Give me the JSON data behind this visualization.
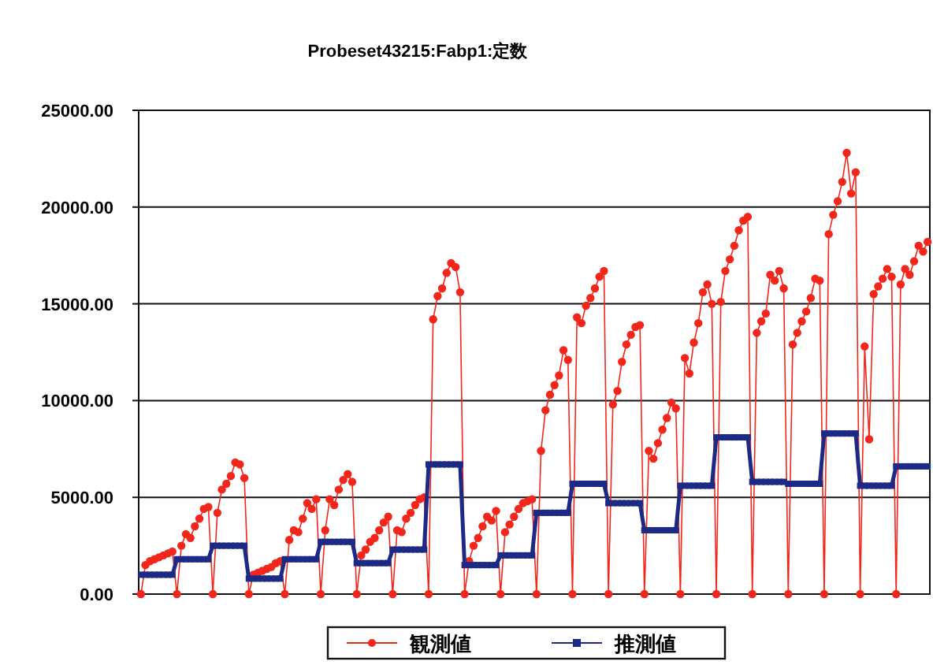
{
  "chart_data": {
    "type": "line",
    "title": "Probeset43215:Fabp1:定数",
    "categories": [
      null,
      null,
      null,
      null,
      null,
      null,
      null,
      null,
      null,
      null,
      null,
      null,
      null,
      null,
      null,
      null,
      null,
      null,
      null,
      null,
      null,
      null,
      null,
      null,
      null,
      null,
      null,
      null,
      null,
      null,
      null,
      null,
      null,
      null,
      null,
      null,
      null,
      null,
      null,
      null,
      null,
      null,
      null,
      null,
      null,
      null,
      null,
      null,
      null,
      null,
      null,
      null,
      null,
      null,
      null,
      null,
      null,
      null,
      null,
      null,
      null,
      null,
      null,
      null,
      null,
      null,
      null,
      null,
      null,
      null,
      null,
      null,
      null,
      null,
      null,
      null,
      null,
      null,
      null,
      null,
      null,
      null,
      null,
      null,
      null,
      null,
      null,
      null,
      null,
      null,
      null,
      null,
      null,
      null,
      null,
      null,
      null,
      null,
      null,
      null,
      null,
      null,
      null,
      null,
      null,
      null,
      null,
      null,
      null,
      null,
      null,
      null,
      null,
      null,
      null,
      null,
      null,
      null,
      null,
      null,
      null,
      null,
      null,
      null,
      null,
      null,
      null,
      null,
      null,
      null,
      null,
      null,
      null,
      null,
      null,
      null,
      null,
      null,
      null,
      null,
      null,
      null,
      null,
      null,
      null,
      null,
      null,
      null,
      null,
      null,
      null,
      null,
      null,
      null,
      null,
      null,
      null,
      null,
      null,
      null,
      null,
      null,
      null,
      null,
      null,
      null,
      null,
      null,
      null,
      null,
      null,
      null,
      null,
      null,
      null,
      null
    ],
    "ylim": [
      0,
      25000
    ],
    "yticks": [
      {
        "value": 0,
        "label": "0.00"
      },
      {
        "value": 5000,
        "label": "5000.00"
      },
      {
        "value": 10000,
        "label": "10000.00"
      },
      {
        "value": 15000,
        "label": "15000.00"
      },
      {
        "value": 20000,
        "label": "20000.00"
      },
      {
        "value": 25000,
        "label": "25000.00"
      }
    ],
    "grid": "y",
    "legend": "bottom",
    "series": [
      {
        "name": "観測値",
        "color": "#f2261a",
        "marker": "circle",
        "values": [
          0,
          1500,
          1700,
          1800,
          1900,
          2000,
          2100,
          2200,
          0,
          2500,
          3100,
          2900,
          3500,
          3900,
          4400,
          4500,
          0,
          4200,
          5400,
          5700,
          6100,
          6800,
          6700,
          6000,
          0,
          1000,
          1100,
          1200,
          1300,
          1400,
          1600,
          1700,
          0,
          2800,
          3300,
          3200,
          3900,
          4700,
          4400,
          4900,
          0,
          3300,
          4900,
          4600,
          5400,
          5900,
          6200,
          5800,
          0,
          2000,
          2300,
          2700,
          2900,
          3300,
          3700,
          4000,
          0,
          3300,
          3200,
          3900,
          4200,
          4600,
          4900,
          5000,
          0,
          14200,
          15400,
          15800,
          16600,
          17100,
          16900,
          15600,
          0,
          1700,
          2500,
          2900,
          3500,
          4000,
          3800,
          4300,
          0,
          3200,
          3600,
          4000,
          4400,
          4700,
          4800,
          4900,
          0,
          7400,
          9500,
          10300,
          10800,
          11300,
          12600,
          12100,
          0,
          14300,
          14000,
          14900,
          15300,
          15800,
          16400,
          16700,
          0,
          9800,
          10500,
          12000,
          12900,
          13400,
          13800,
          13900,
          0,
          7400,
          7000,
          7800,
          8500,
          9100,
          9900,
          9600,
          0,
          12200,
          11400,
          13000,
          14000,
          15600,
          16000,
          15000,
          0,
          15100,
          16700,
          17300,
          18000,
          18800,
          19300,
          19500,
          0,
          13500,
          14100,
          14500,
          16500,
          16200,
          16700,
          15800,
          0,
          12900,
          13500,
          14100,
          14600,
          15300,
          16300,
          16200,
          0,
          18600,
          19600,
          20300,
          21300,
          22800,
          20700,
          21800,
          0,
          12800,
          8000,
          15500,
          15900,
          16300,
          16800,
          16400,
          0,
          16000,
          16800,
          16500,
          17200,
          18000,
          17700,
          18200
        ]
      },
      {
        "name": "推測値",
        "color": "#1c2a85",
        "marker": "square",
        "values": [
          1000,
          1000,
          1000,
          1000,
          1000,
          1000,
          1000,
          1000,
          1800,
          1800,
          1800,
          1800,
          1800,
          1800,
          1800,
          1800,
          2500,
          2500,
          2500,
          2500,
          2500,
          2500,
          2500,
          2500,
          800,
          800,
          800,
          800,
          800,
          800,
          800,
          800,
          1800,
          1800,
          1800,
          1800,
          1800,
          1800,
          1800,
          1800,
          2700,
          2700,
          2700,
          2700,
          2700,
          2700,
          2700,
          2700,
          1600,
          1600,
          1600,
          1600,
          1600,
          1600,
          1600,
          1600,
          2300,
          2300,
          2300,
          2300,
          2300,
          2300,
          2300,
          2300,
          6700,
          6700,
          6700,
          6700,
          6700,
          6700,
          6700,
          6700,
          1500,
          1500,
          1500,
          1500,
          1500,
          1500,
          1500,
          1500,
          2000,
          2000,
          2000,
          2000,
          2000,
          2000,
          2000,
          2000,
          4200,
          4200,
          4200,
          4200,
          4200,
          4200,
          4200,
          4200,
          5700,
          5700,
          5700,
          5700,
          5700,
          5700,
          5700,
          5700,
          4700,
          4700,
          4700,
          4700,
          4700,
          4700,
          4700,
          4700,
          3300,
          3300,
          3300,
          3300,
          3300,
          3300,
          3300,
          3300,
          5600,
          5600,
          5600,
          5600,
          5600,
          5600,
          5600,
          5600,
          8100,
          8100,
          8100,
          8100,
          8100,
          8100,
          8100,
          8100,
          5800,
          5800,
          5800,
          5800,
          5800,
          5800,
          5800,
          5800,
          5700,
          5700,
          5700,
          5700,
          5700,
          5700,
          5700,
          5700,
          8300,
          8300,
          8300,
          8300,
          8300,
          8300,
          8300,
          8300,
          5600,
          5600,
          5600,
          5600,
          5600,
          5600,
          5600,
          5600,
          6600,
          6600,
          6600,
          6600,
          6600,
          6600,
          6600,
          6600
        ]
      }
    ]
  }
}
